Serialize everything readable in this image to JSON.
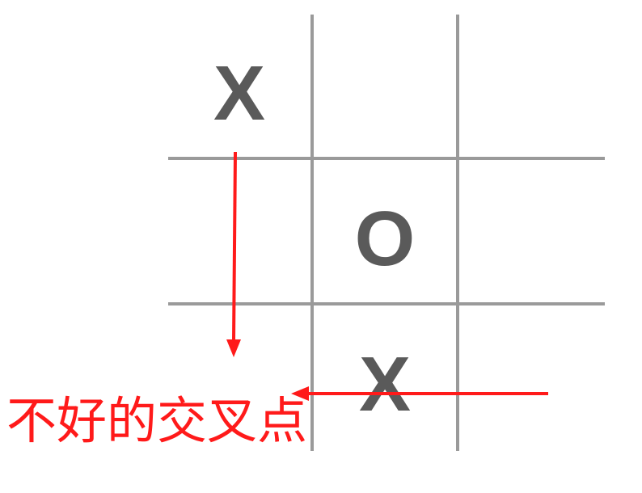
{
  "board": {
    "cells": [
      [
        "X",
        "",
        ""
      ],
      [
        "",
        "O",
        ""
      ],
      [
        "",
        "X",
        ""
      ]
    ],
    "grid_color": "#9a9a9a",
    "mark_color": "#5a5a5a"
  },
  "annotation": {
    "caption": "不好的交叉点",
    "color": "#ff1a1a"
  }
}
